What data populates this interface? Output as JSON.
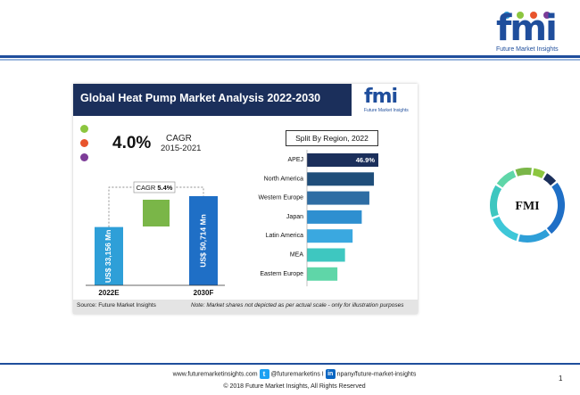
{
  "brand": {
    "letters": "fmi",
    "tagline": "Future Market Insights",
    "dot_colors": [
      "#2e9fd8",
      "#8cc63f",
      "#e8542c",
      "#7d3c98"
    ]
  },
  "panel": {
    "title": "Global Heat Pump Market Analysis 2022-2030",
    "cagr_value": "4.0%",
    "cagr_label": "CAGR",
    "cagr_period": "2015-2021",
    "status_dot_colors": [
      "#8cc63f",
      "#e8542c",
      "#7d3c98"
    ],
    "source": "Source: Future Market Insights",
    "note": "Note: Market shares not depicted as per actual scale - only for illustration purposes",
    "split_label": "Split By Region, 2022"
  },
  "chart_data": [
    {
      "type": "bar",
      "categories": [
        "2022E",
        "2030F"
      ],
      "values": [
        33156,
        50714
      ],
      "value_labels": [
        "US$ 33,156 Mn",
        "US$ 50,714 Mn"
      ],
      "cagr_callout": {
        "label": "CAGR",
        "value": "5.4%"
      },
      "colors": [
        "#2e9fd8",
        "#1f6fc6",
        "#7ab648"
      ]
    },
    {
      "type": "bar",
      "orientation": "horizontal",
      "categories": [
        "APEJ",
        "North America",
        "Western Europe",
        "Japan",
        "Latin America",
        "MEA",
        "Eastern Europe"
      ],
      "values": [
        46.9,
        44,
        41,
        36,
        30,
        25,
        20
      ],
      "labels": [
        "46.9%",
        "",
        "",
        "",
        "",
        "",
        ""
      ],
      "colors": [
        "#1b2f5b",
        "#1f4e7a",
        "#2e6da4",
        "#2e8fd0",
        "#3aa8e0",
        "#3ec7c0",
        "#5fd6a8"
      ]
    },
    {
      "type": "pie",
      "center_label": "FMI",
      "values": [
        25,
        15,
        15,
        15,
        10,
        8,
        6,
        6
      ],
      "colors": [
        "#1f6fc6",
        "#2e9fd8",
        "#3ec7d8",
        "#3ec7c0",
        "#5fd6a8",
        "#7ab648",
        "#8cc63f",
        "#1b2f5b"
      ]
    }
  ],
  "footer": {
    "links_before": "www.futuremarketinsights.com",
    "twitter": "@futuremarketins",
    "sep": "I",
    "linkedin_before": "",
    "linkedin_after": "npany/future-market-insights",
    "copyright": "© 2018 Future Market Insights, All Rights Reserved",
    "page": "1"
  }
}
